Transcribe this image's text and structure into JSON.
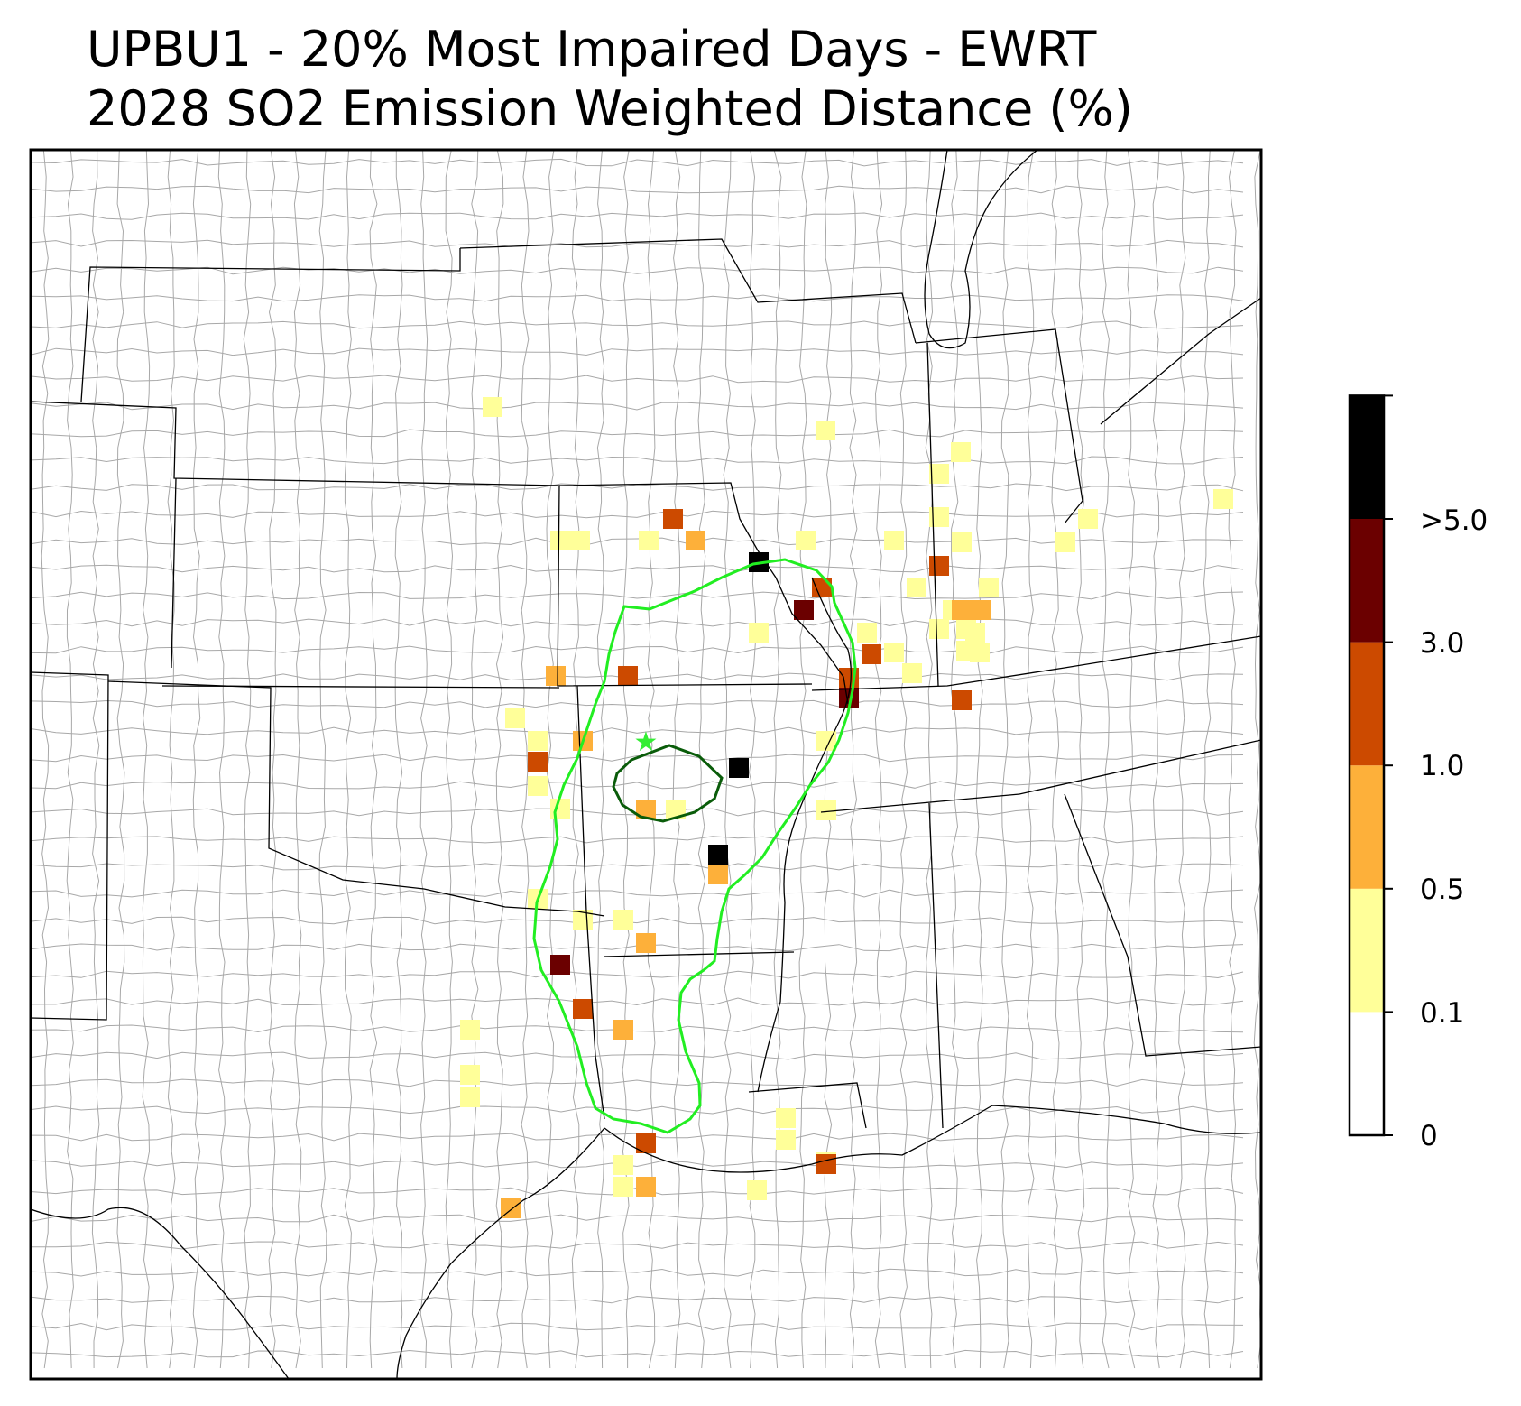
{
  "title": {
    "line1": "UPBU1 - 20% Most Impaired Days - EWRT",
    "line2": "2028 SO2 Emission Weighted Distance (%)"
  },
  "colorbar": {
    "bins": [
      {
        "from": 0,
        "to": 0.1,
        "color": "#ffffff"
      },
      {
        "from": 0.1,
        "to": 0.5,
        "color": "#ffff99"
      },
      {
        "from": 0.5,
        "to": 1.0,
        "color": "#fdb03a"
      },
      {
        "from": 1.0,
        "to": 3.0,
        "color": "#cc4a00"
      },
      {
        "from": 3.0,
        "to": 5.0,
        "color": "#6b0000"
      },
      {
        "from": 5.0,
        "to": null,
        "color": "#000000"
      }
    ],
    "tick_labels": [
      "0",
      "0.1",
      "0.5",
      "1.0",
      "3.0",
      ">5.0"
    ]
  },
  "overlay": {
    "receptor_marker": "star-icon",
    "receptor_color": "#33ee33",
    "outer_contour_color": "#22ee22",
    "inner_contour_color": "#0a5c0a"
  }
}
